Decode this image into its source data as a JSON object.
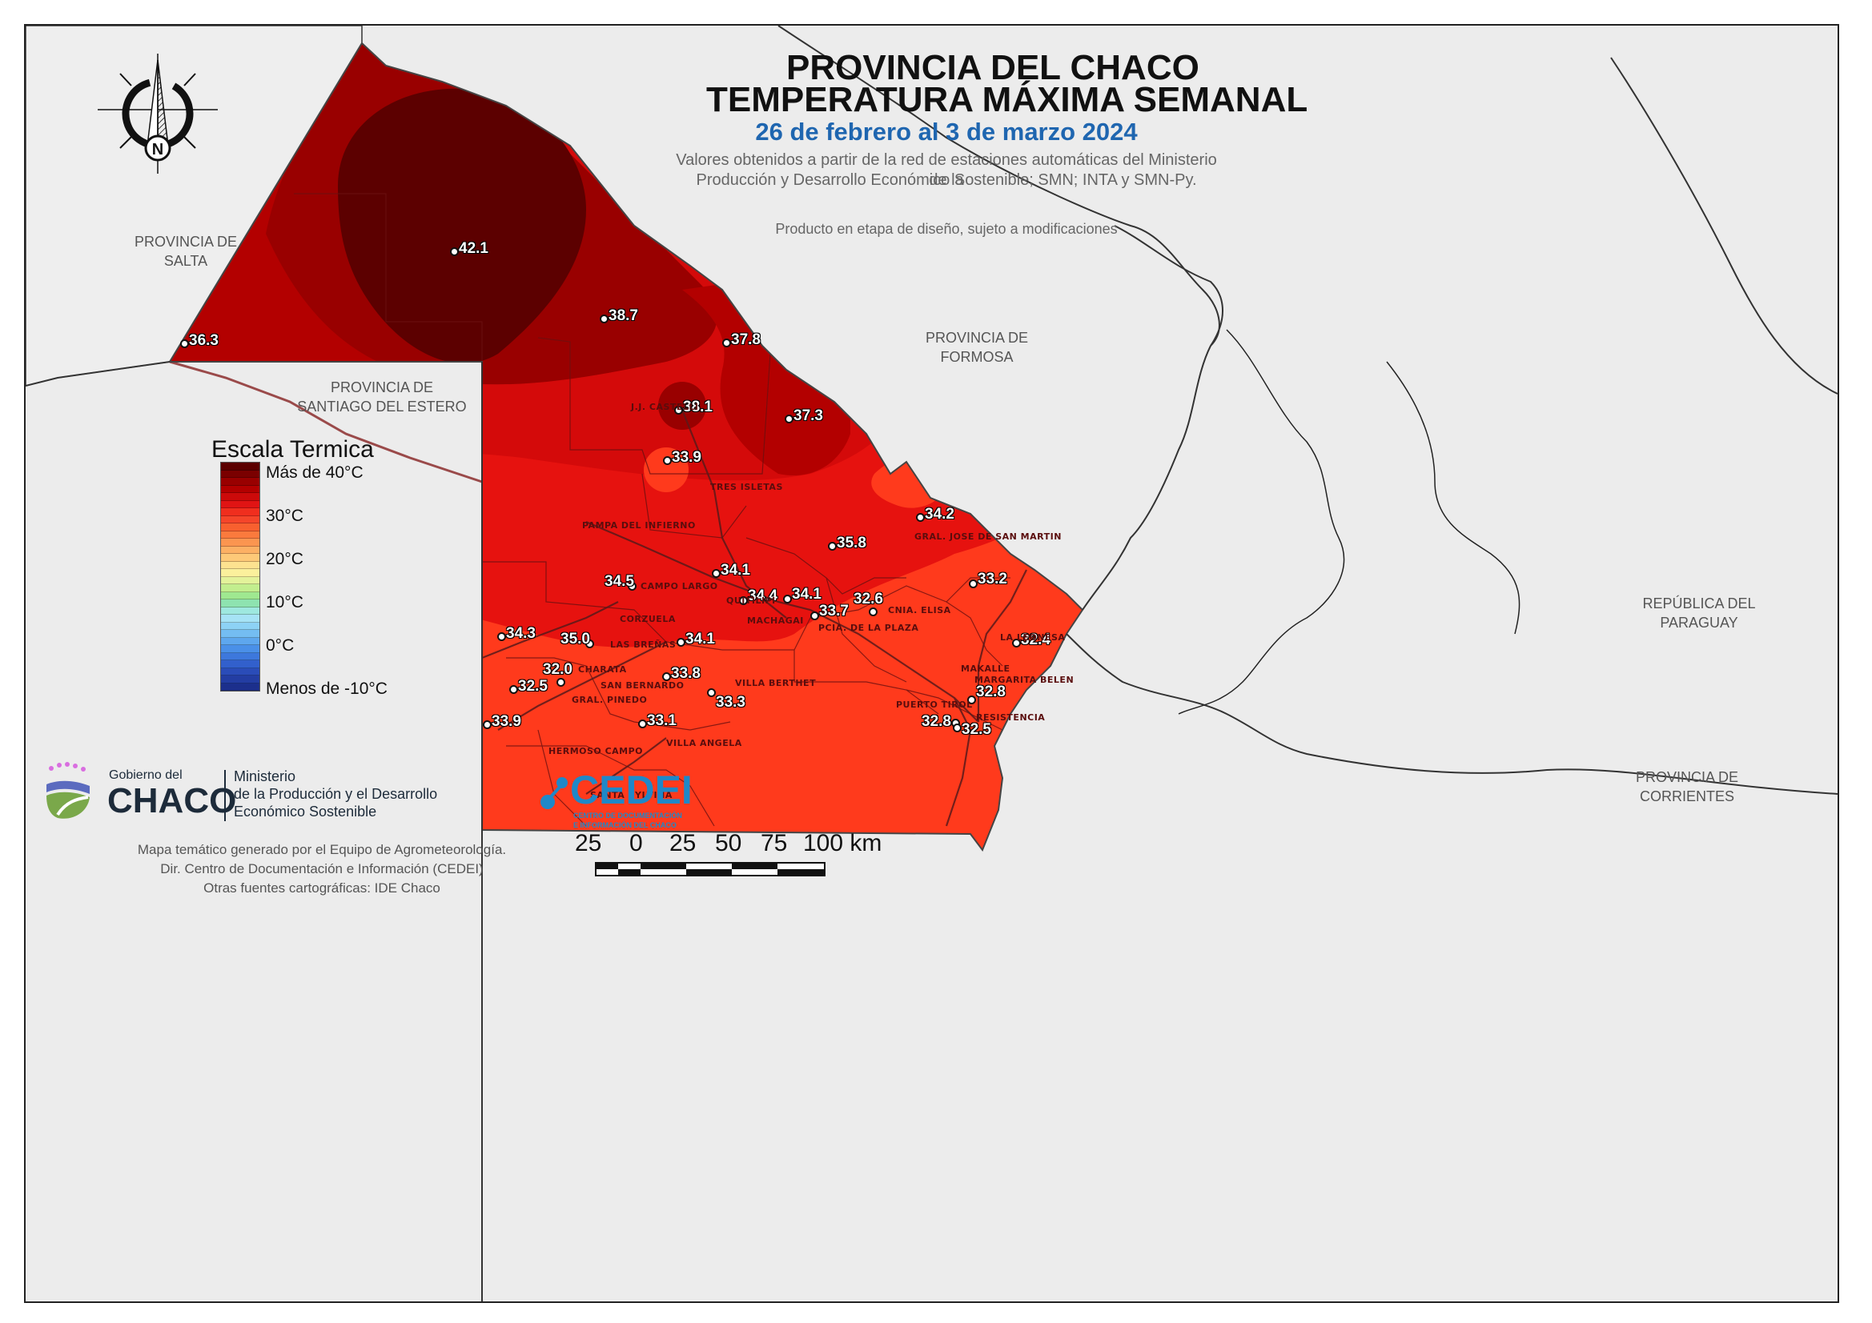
{
  "title": {
    "line1": "PROVINCIA DEL CHACO",
    "line2": "TEMPERATURA MÁXIMA SEMANAL",
    "date_range": "26 de febrero al 3 de marzo 2024",
    "source_line1": "Valores obtenidos a partir de la red de estaciones automáticas del Ministerio de la",
    "source_line2": "Producción y Desarrollo Económico Sostenible; SMN; INTA y SMN-Py.",
    "disclaimer": "Producto en etapa de diseño, sujeto a modificaciones"
  },
  "compass": {
    "label": "N",
    "icon": "north-arrow-icon"
  },
  "neighbors": {
    "salta": {
      "l1": "PROVINCIA DE",
      "l2": "SALTA"
    },
    "santiago": {
      "l1": "PROVINCIA DE",
      "l2": "SANTIAGO DEL ESTERO"
    },
    "formosa": {
      "l1": "PROVINCIA DE",
      "l2": "FORMOSA"
    },
    "paraguay": {
      "l1": "REPÚBLICA DEL",
      "l2": "PARAGUAY"
    },
    "corrientes": {
      "l1": "PROVINCIA DE",
      "l2": "CORRIENTES"
    }
  },
  "legend": {
    "title": "Escala Termica",
    "labels": [
      "Más de 40°C",
      "30°C",
      "20°C",
      "10°C",
      "0°C",
      "Menos de -10°C"
    ],
    "colors": [
      "#5c0000",
      "#7a0000",
      "#990000",
      "#b30000",
      "#cc0a0a",
      "#e01414",
      "#f02e1e",
      "#f5452a",
      "#f8602f",
      "#fa7a3d",
      "#fb9550",
      "#fcb064",
      "#fdc978",
      "#fde290",
      "#fbf09c",
      "#e3f29a",
      "#c2ee8e",
      "#9fe890",
      "#8ee3b0",
      "#9ee8df",
      "#a6e3f5",
      "#8dd2f5",
      "#74bdf2",
      "#5ea7ee",
      "#4a90e8",
      "#3d78dc",
      "#3260cc",
      "#2a4cb8",
      "#233da3",
      "#1c2f8c"
    ]
  },
  "stations": [
    {
      "value": "42.1"
    },
    {
      "value": "38.7"
    },
    {
      "value": "37.8"
    },
    {
      "value": "36.3"
    },
    {
      "value": "38.1"
    },
    {
      "value": "37.3"
    },
    {
      "value": "33.9"
    },
    {
      "value": "34.2"
    },
    {
      "value": "35.8"
    },
    {
      "value": "34.1"
    },
    {
      "value": "34.5"
    },
    {
      "value": "34.4"
    },
    {
      "value": "34.1"
    },
    {
      "value": "33.7"
    },
    {
      "value": "32.6"
    },
    {
      "value": "33.2"
    },
    {
      "value": "32.4"
    },
    {
      "value": "34.3"
    },
    {
      "value": "35.0"
    },
    {
      "value": "34.1"
    },
    {
      "value": "33.8"
    },
    {
      "value": "32.0"
    },
    {
      "value": "32.5"
    },
    {
      "value": "33.3"
    },
    {
      "value": "33.9"
    },
    {
      "value": "33.1"
    },
    {
      "value": "32.8"
    },
    {
      "value": "32.8"
    },
    {
      "value": "32.5"
    }
  ],
  "towns": [
    "J.J. CASTELLI",
    "TRES ISLETAS",
    "PAMPA DEL INFIERNO",
    "GRAL. JOSE DE SAN MARTIN",
    "CAMPO LARGO",
    "QUITILIPI",
    "MACHAGAI",
    "CNIA. ELISA",
    "PCIA. DE LA PLAZA",
    "CORZUELA",
    "LAS BREÑAS",
    "LA LEONESA",
    "CHARATA",
    "SAN BERNARDO",
    "MAKALLE",
    "MARGARITA BELEN",
    "VILLA BERTHET",
    "GRAL. PINEDO",
    "PUERTO TIROL",
    "RESISTENCIA",
    "HERMOSO CAMPO",
    "VILLA ANGELA",
    "SANTA SYLVINA"
  ],
  "scalebar": {
    "labels": [
      "25",
      "0",
      "25",
      "50",
      "75",
      "100 km"
    ]
  },
  "logos": {
    "gobierno_small": "Gobierno del",
    "gobierno_big": "CHACO",
    "ministerio_l1": "Ministerio",
    "ministerio_l2": "de la Producción y el Desarrollo",
    "ministerio_l3": "Económico Sostenible",
    "cedei": "CEDEI",
    "cedei_sub1": "CENTRO DE DOCUMENTACIÓN",
    "cedei_sub2": "E INFORMACIÓN DEL CHACO"
  },
  "credits": {
    "l1": "Mapa temático generado por el Equipo de Agrometeorología.",
    "l2": "Dir. Centro de Documentación e Información (CEDEI)",
    "l3": "Otras fuentes cartográficas: IDE Chaco"
  },
  "colors": {
    "zone_dark": "#5c0000",
    "zone_38": "#990000",
    "zone_36": "#b30000",
    "zone_35": "#d40a0a",
    "zone_34": "#e6120f",
    "zone_33": "#ff3a1c",
    "title_blue": "#1f66b0",
    "cedei_blue": "#1f88c8"
  }
}
